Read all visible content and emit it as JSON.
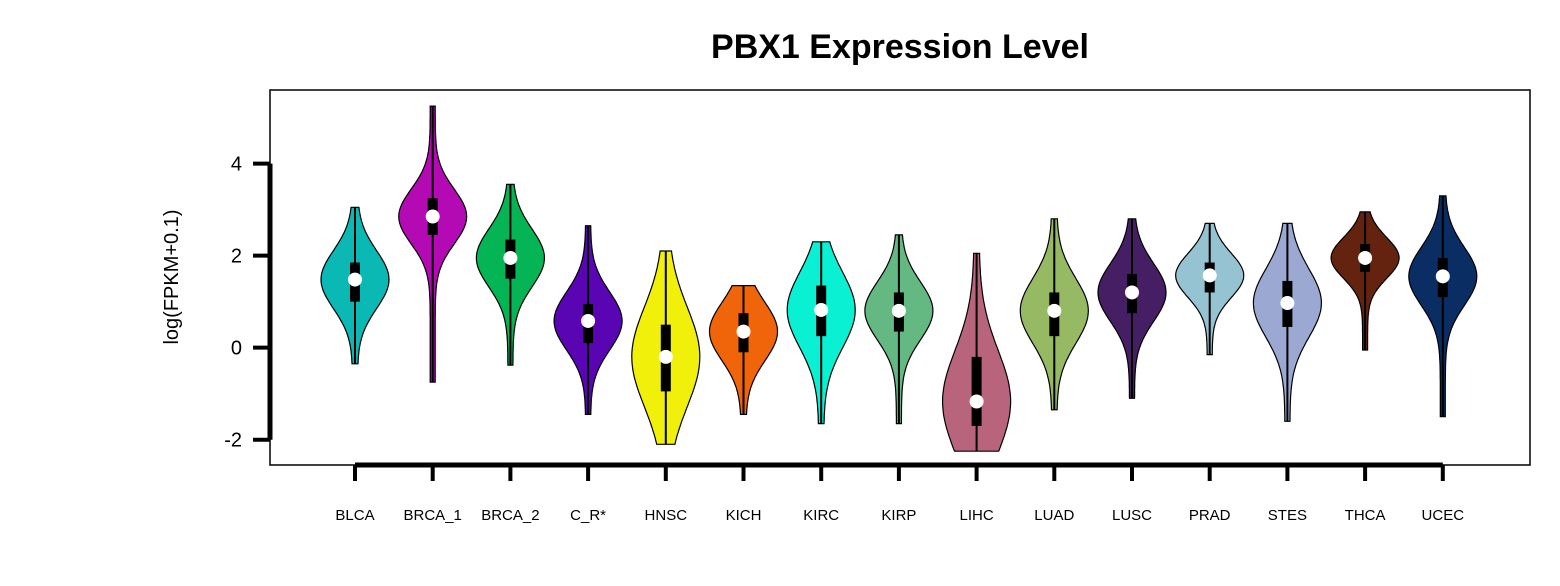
{
  "chart_data": {
    "type": "violin",
    "title": "PBX1 Expression Level",
    "xlabel": "",
    "ylabel": "log(FPKM+0.1)",
    "ylim": [
      -2.55,
      5.6
    ],
    "yticks": [
      4,
      2,
      0,
      -2
    ],
    "grid": false,
    "categories": [
      "BLCA",
      "BRCA_1",
      "BRCA_2",
      "C_R*",
      "HNSC",
      "KICH",
      "KIRC",
      "KIRP",
      "LIHC",
      "LUAD",
      "LUSC",
      "PRAD",
      "STES",
      "THCA",
      "UCEC"
    ],
    "series": [
      {
        "color": "#0ab8b4",
        "min": -0.35,
        "q1": 1.0,
        "median": 1.48,
        "q3": 1.85,
        "max": 3.05
      },
      {
        "color": "#b40ab4",
        "min": -0.75,
        "q1": 2.45,
        "median": 2.85,
        "q3": 3.25,
        "max": 5.25
      },
      {
        "color": "#05b455",
        "min": -0.38,
        "q1": 1.5,
        "median": 1.95,
        "q3": 2.35,
        "max": 3.55
      },
      {
        "color": "#5a05b4",
        "min": -1.45,
        "q1": 0.1,
        "median": 0.58,
        "q3": 0.95,
        "max": 2.65
      },
      {
        "color": "#f0f00a",
        "min": -2.1,
        "q1": -0.95,
        "median": -0.2,
        "q3": 0.5,
        "max": 2.1
      },
      {
        "color": "#f0640a",
        "min": -1.45,
        "q1": -0.1,
        "median": 0.35,
        "q3": 0.75,
        "max": 1.35
      },
      {
        "color": "#0af0d2",
        "min": -1.65,
        "q1": 0.25,
        "median": 0.82,
        "q3": 1.35,
        "max": 2.3
      },
      {
        "color": "#64b882",
        "min": -1.65,
        "q1": 0.35,
        "median": 0.8,
        "q3": 1.2,
        "max": 2.45
      },
      {
        "color": "#b9647d",
        "min": -2.25,
        "q1": -1.7,
        "median": -1.17,
        "q3": -0.2,
        "max": 2.05
      },
      {
        "color": "#96b964",
        "min": -1.35,
        "q1": 0.25,
        "median": 0.8,
        "q3": 1.2,
        "max": 2.8
      },
      {
        "color": "#461e64",
        "min": -1.1,
        "q1": 0.75,
        "median": 1.2,
        "q3": 1.6,
        "max": 2.8
      },
      {
        "color": "#96c3d2",
        "min": -0.15,
        "q1": 1.2,
        "median": 1.57,
        "q3": 1.85,
        "max": 2.7
      },
      {
        "color": "#9ba9d2",
        "min": -1.6,
        "q1": 0.45,
        "median": 0.97,
        "q3": 1.45,
        "max": 2.7
      },
      {
        "color": "#64230f",
        "min": -0.05,
        "q1": 1.65,
        "median": 1.95,
        "q3": 2.25,
        "max": 2.95
      },
      {
        "color": "#0a2d64",
        "min": -1.5,
        "q1": 1.1,
        "median": 1.55,
        "q3": 1.95,
        "max": 3.3
      }
    ]
  }
}
